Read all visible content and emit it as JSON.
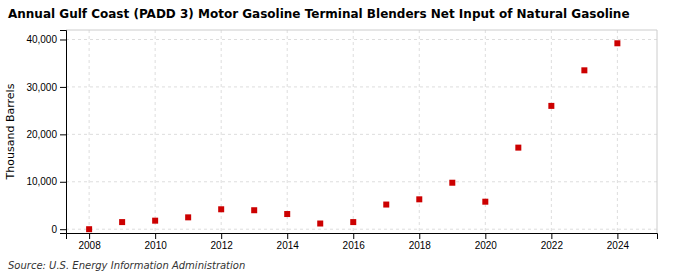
{
  "chart_data": {
    "type": "scatter",
    "title": "Annual Gulf Coast (PADD 3) Motor Gasoline Terminal Blenders Net Input of Natural Gasoline",
    "y_label": "Thousand Barrels",
    "annotations": [
      "Source: U.S. Energy Information Administration"
    ],
    "x": [
      2008,
      2009,
      2010,
      2011,
      2012,
      2013,
      2014,
      2015,
      2016,
      2017,
      2018,
      2019,
      2020,
      2021,
      2022,
      2023,
      2024
    ],
    "values": [
      0,
      1500,
      1800,
      2500,
      4200,
      4000,
      3200,
      1200,
      1500,
      5200,
      6300,
      9800,
      5800,
      17200,
      26000,
      33500,
      39200
    ],
    "color": "#cc0000",
    "marker": "square",
    "xlim": [
      2007.3,
      2025.2
    ],
    "xticks": [
      2008,
      2010,
      2012,
      2014,
      2016,
      2018,
      2020,
      2022,
      2024
    ],
    "ylim": [
      -800,
      42000
    ],
    "yticks": [
      0,
      {
        "value": 10000,
        "label": "10,000"
      },
      {
        "value": 20000,
        "label": "20,000"
      },
      {
        "value": 30000,
        "label": "30,000"
      },
      {
        "value": 40000,
        "label": "40,000"
      }
    ],
    "grid": true
  }
}
